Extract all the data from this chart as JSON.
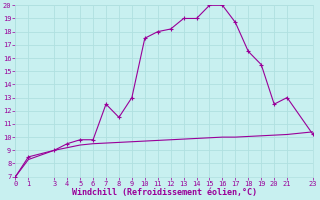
{
  "xlabel": "Windchill (Refroidissement éolien,°C)",
  "line1_x": [
    0,
    1,
    3,
    4,
    5,
    6,
    7,
    8,
    9,
    10,
    11,
    12,
    13,
    14,
    15,
    16,
    17,
    18,
    19,
    20,
    21,
    23
  ],
  "line1_y": [
    7.0,
    8.5,
    9.0,
    9.5,
    9.8,
    9.8,
    12.5,
    11.5,
    13.0,
    17.5,
    18.0,
    18.2,
    19.0,
    19.0,
    20.0,
    20.0,
    18.7,
    16.5,
    15.5,
    12.5,
    13.0,
    10.2
  ],
  "line2_x": [
    0,
    1,
    3,
    4,
    5,
    6,
    7,
    8,
    9,
    10,
    11,
    12,
    13,
    14,
    15,
    16,
    17,
    18,
    19,
    20,
    21,
    23
  ],
  "line2_y": [
    7.0,
    8.3,
    9.0,
    9.2,
    9.4,
    9.5,
    9.55,
    9.6,
    9.65,
    9.7,
    9.75,
    9.8,
    9.85,
    9.9,
    9.95,
    10.0,
    10.0,
    10.05,
    10.1,
    10.15,
    10.2,
    10.4
  ],
  "line_color": "#990099",
  "bg_color": "#c8f0f0",
  "grid_color": "#b0e0e0",
  "ylim_min": 7,
  "ylim_max": 20,
  "xlim_min": 0,
  "xlim_max": 23,
  "yticks": [
    7,
    8,
    9,
    10,
    11,
    12,
    13,
    14,
    15,
    16,
    17,
    18,
    19,
    20
  ],
  "xticks": [
    0,
    1,
    3,
    4,
    5,
    6,
    7,
    8,
    9,
    10,
    11,
    12,
    13,
    14,
    15,
    16,
    17,
    18,
    19,
    20,
    21,
    23
  ],
  "tick_fontsize": 5,
  "xlabel_fontsize": 6
}
